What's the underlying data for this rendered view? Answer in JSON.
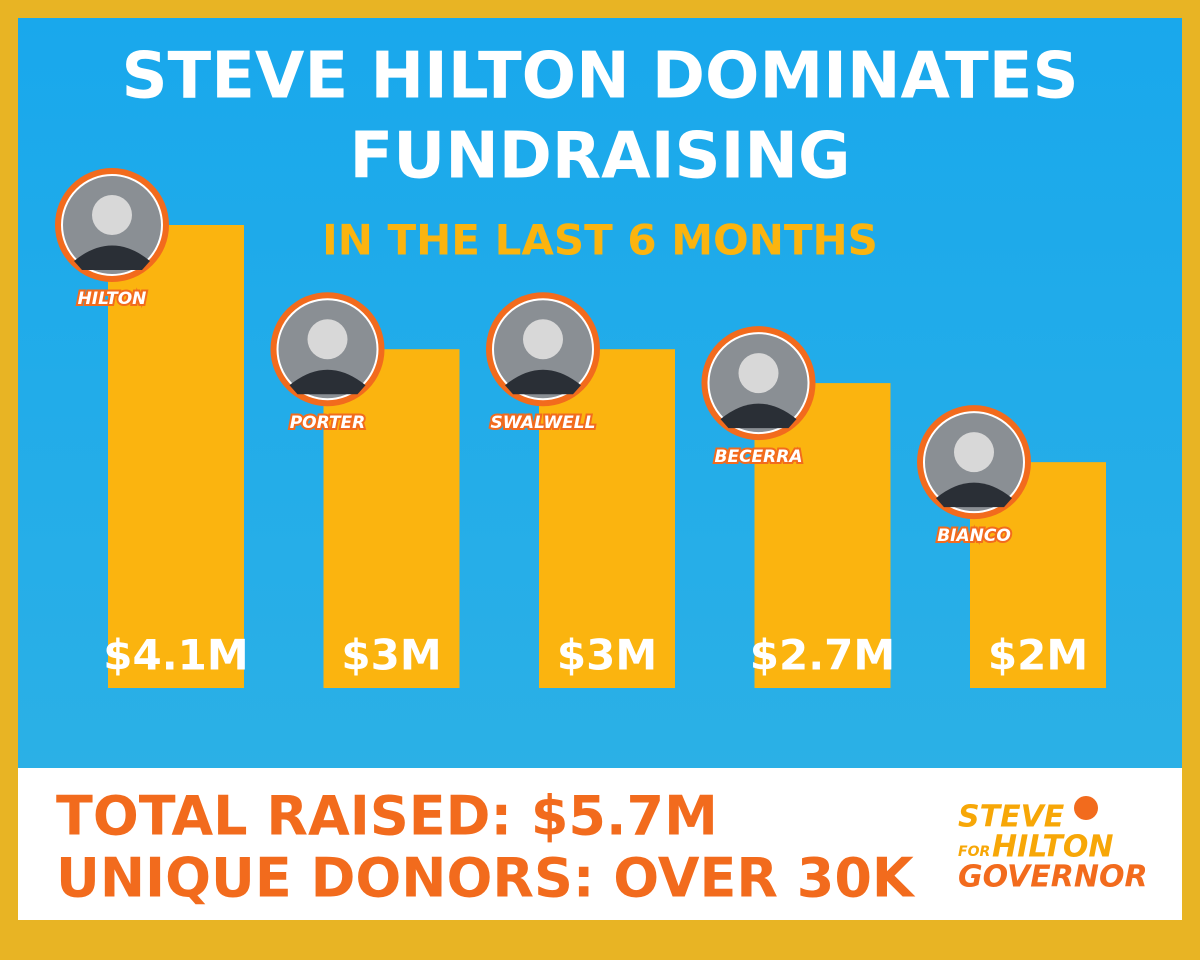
{
  "chart_data": {
    "type": "bar",
    "title_lines": [
      "STEVE HILTON DOMINATES",
      "FUNDRAISING"
    ],
    "subtitle": "IN THE LAST 6 MONTHS",
    "categories": [
      "HILTON",
      "PORTER",
      "SWALWELL",
      "BECERRA",
      "BIANCO"
    ],
    "values": [
      4.1,
      3,
      3,
      2.7,
      2
    ],
    "value_labels": [
      "$4.1M",
      "$3M",
      "$3M",
      "$2.7M",
      "$2M"
    ],
    "color": "#fbb40f"
  },
  "footer": {
    "lines": [
      "TOTAL RAISED: $5.7M",
      "UNIQUE DONORS: OVER 30K"
    ]
  },
  "logo": {
    "top": "STEVE",
    "for": "FOR",
    "name": "HILTON",
    "office": "GOVERNOR"
  }
}
